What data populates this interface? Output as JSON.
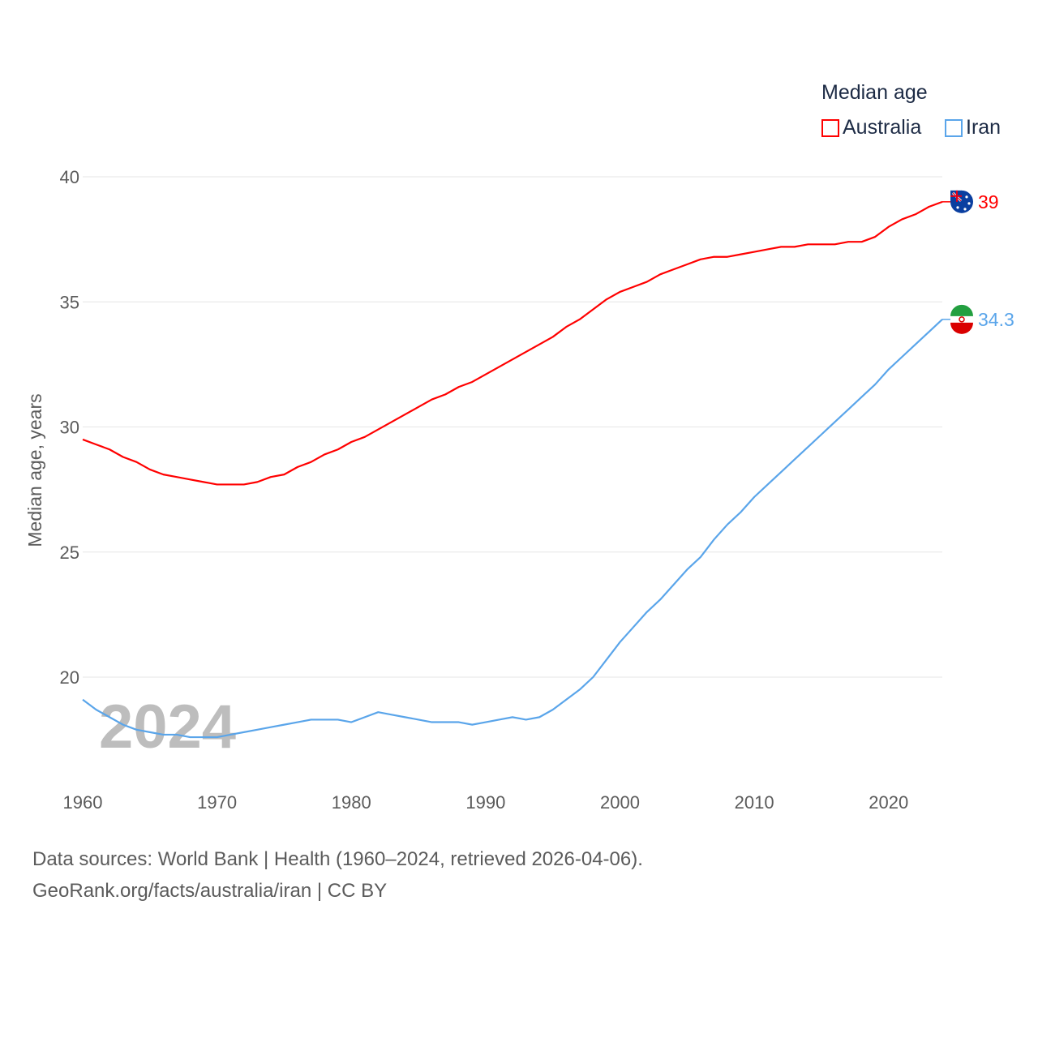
{
  "chart_data": {
    "type": "line",
    "title": "",
    "xlabel": "",
    "ylabel": "Median age, years",
    "xlim": [
      1960,
      2024
    ],
    "ylim": [
      17,
      41.5
    ],
    "yticks": [
      20,
      25,
      30,
      35,
      40
    ],
    "xticks": [
      1960,
      1970,
      1980,
      1990,
      2000,
      2010,
      2020
    ],
    "grid": true,
    "legend_title": "Median age",
    "legend_position": "top-right",
    "year_watermark": "2024",
    "x": [
      1960,
      1961,
      1962,
      1963,
      1964,
      1965,
      1966,
      1967,
      1968,
      1969,
      1970,
      1971,
      1972,
      1973,
      1974,
      1975,
      1976,
      1977,
      1978,
      1979,
      1980,
      1981,
      1982,
      1983,
      1984,
      1985,
      1986,
      1987,
      1988,
      1989,
      1990,
      1991,
      1992,
      1993,
      1994,
      1995,
      1996,
      1997,
      1998,
      1999,
      2000,
      2001,
      2002,
      2003,
      2004,
      2005,
      2006,
      2007,
      2008,
      2009,
      2010,
      2011,
      2012,
      2013,
      2014,
      2015,
      2016,
      2017,
      2018,
      2019,
      2020,
      2021,
      2022,
      2023,
      2024
    ],
    "series": [
      {
        "name": "Australia",
        "color": "#ff0000",
        "end_label": "39",
        "values": [
          29.5,
          29.3,
          29.1,
          28.8,
          28.6,
          28.3,
          28.1,
          28.0,
          27.9,
          27.8,
          27.7,
          27.7,
          27.7,
          27.8,
          28.0,
          28.1,
          28.4,
          28.6,
          28.9,
          29.1,
          29.4,
          29.6,
          29.9,
          30.2,
          30.5,
          30.8,
          31.1,
          31.3,
          31.6,
          31.8,
          32.1,
          32.4,
          32.7,
          33.0,
          33.3,
          33.6,
          34.0,
          34.3,
          34.7,
          35.1,
          35.4,
          35.6,
          35.8,
          36.1,
          36.3,
          36.5,
          36.7,
          36.8,
          36.8,
          36.9,
          37.0,
          37.1,
          37.2,
          37.2,
          37.3,
          37.3,
          37.3,
          37.4,
          37.4,
          37.6,
          38.0,
          38.3,
          38.5,
          38.8,
          39.0
        ]
      },
      {
        "name": "Iran",
        "color": "#5aa5ea",
        "end_label": "34.3",
        "values": [
          19.1,
          18.7,
          18.4,
          18.1,
          17.9,
          17.8,
          17.7,
          17.7,
          17.6,
          17.6,
          17.6,
          17.7,
          17.8,
          17.9,
          18.0,
          18.1,
          18.2,
          18.3,
          18.3,
          18.3,
          18.2,
          18.4,
          18.6,
          18.5,
          18.4,
          18.3,
          18.2,
          18.2,
          18.2,
          18.1,
          18.2,
          18.3,
          18.4,
          18.3,
          18.4,
          18.7,
          19.1,
          19.5,
          20.0,
          20.7,
          21.4,
          22.0,
          22.6,
          23.1,
          23.7,
          24.3,
          24.8,
          25.5,
          26.1,
          26.6,
          27.2,
          27.7,
          28.2,
          28.7,
          29.2,
          29.7,
          30.2,
          30.7,
          31.2,
          31.7,
          32.3,
          32.8,
          33.3,
          33.8,
          34.3
        ]
      }
    ]
  },
  "footer": {
    "line1": "Data sources: World Bank | Health (1960–2024, retrieved 2026-04-06).",
    "line2": "GeoRank.org/facts/australia/iran | CC BY"
  }
}
